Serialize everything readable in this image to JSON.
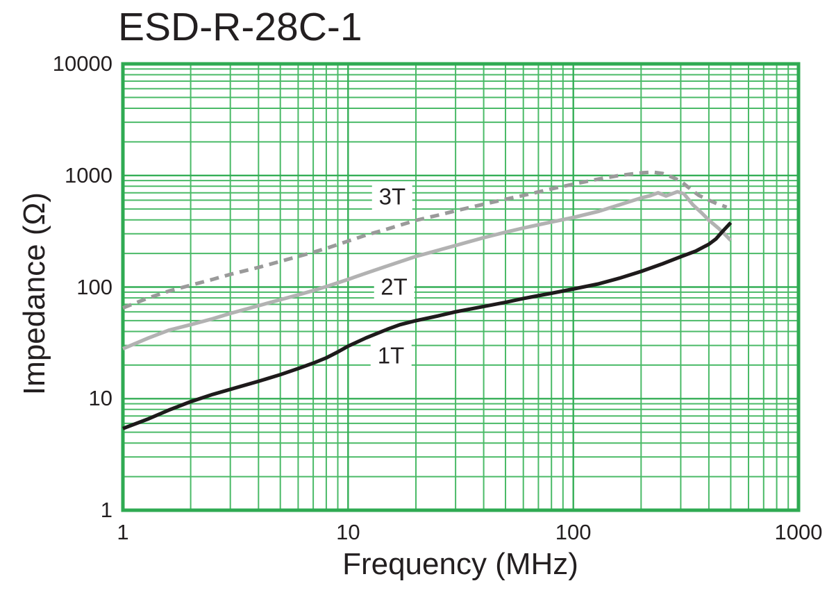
{
  "chart_data": {
    "type": "line",
    "title": "ESD-R-28C-1",
    "xlabel": "Frequency (MHz)",
    "ylabel": "Impedance (Ω)",
    "x_scale": "log",
    "y_scale": "log",
    "xlim": [
      1,
      1000
    ],
    "ylim": [
      1,
      10000
    ],
    "x_ticks": [
      "1",
      "10",
      "100",
      "1000"
    ],
    "y_ticks": [
      "1",
      "10",
      "100",
      "1000",
      "10000"
    ],
    "grid": "full log minor grid, green, on",
    "legend_position": "inline labels on curves",
    "colors": {
      "grid_minor": "#4aba67",
      "grid_major": "#34ae56",
      "plot_border": "#2faa52",
      "text": "#231f20",
      "background": "#ffffff"
    },
    "series": [
      {
        "name": "3T",
        "style": "dashed",
        "color": "#9a9a9a",
        "label_at": {
          "f": 15.7,
          "z": 640
        },
        "points": [
          [
            1,
            65
          ],
          [
            1.3,
            80
          ],
          [
            1.6,
            92
          ],
          [
            2,
            104
          ],
          [
            2.5,
            117
          ],
          [
            3,
            130
          ],
          [
            4,
            150
          ],
          [
            5,
            170
          ],
          [
            6,
            188
          ],
          [
            7,
            205
          ],
          [
            8,
            222
          ],
          [
            10,
            258
          ],
          [
            12,
            292
          ],
          [
            15,
            332
          ],
          [
            20,
            396
          ],
          [
            25,
            440
          ],
          [
            30,
            482
          ],
          [
            40,
            552
          ],
          [
            50,
            612
          ],
          [
            60,
            662
          ],
          [
            80,
            758
          ],
          [
            100,
            835
          ],
          [
            130,
            930
          ],
          [
            160,
            1000
          ],
          [
            200,
            1055
          ],
          [
            225,
            1072
          ],
          [
            250,
            1040
          ],
          [
            280,
            950
          ],
          [
            300,
            888
          ],
          [
            330,
            760
          ],
          [
            360,
            665
          ],
          [
            400,
            600
          ],
          [
            440,
            552
          ],
          [
            480,
            520
          ]
        ]
      },
      {
        "name": "2T",
        "style": "solid",
        "color": "#b2b2b2",
        "label_at": {
          "f": 16,
          "z": 99
        },
        "points": [
          [
            1,
            28
          ],
          [
            1.3,
            35
          ],
          [
            1.6,
            41
          ],
          [
            2,
            46
          ],
          [
            2.5,
            52
          ],
          [
            3,
            58
          ],
          [
            4,
            68
          ],
          [
            5,
            77
          ],
          [
            6,
            85
          ],
          [
            7,
            93
          ],
          [
            8,
            101
          ],
          [
            10,
            117
          ],
          [
            12,
            133
          ],
          [
            15,
            155
          ],
          [
            20,
            188
          ],
          [
            25,
            213
          ],
          [
            30,
            236
          ],
          [
            40,
            277
          ],
          [
            50,
            310
          ],
          [
            60,
            338
          ],
          [
            80,
            383
          ],
          [
            100,
            420
          ],
          [
            130,
            478
          ],
          [
            160,
            545
          ],
          [
            200,
            628
          ],
          [
            220,
            660
          ],
          [
            238,
            700
          ],
          [
            258,
            655
          ],
          [
            290,
            715
          ],
          [
            310,
            685
          ],
          [
            340,
            545
          ],
          [
            370,
            465
          ],
          [
            400,
            398
          ],
          [
            440,
            338
          ],
          [
            470,
            298
          ],
          [
            500,
            262
          ]
        ]
      },
      {
        "name": "1T",
        "style": "solid",
        "color": "#1e1a1b",
        "label_at": {
          "f": 15.5,
          "z": 24
        },
        "points": [
          [
            1,
            5.4
          ],
          [
            1.3,
            6.6
          ],
          [
            1.6,
            7.9
          ],
          [
            2,
            9.4
          ],
          [
            2.5,
            10.9
          ],
          [
            3,
            12.1
          ],
          [
            4,
            14.3
          ],
          [
            5,
            16.4
          ],
          [
            6,
            18.6
          ],
          [
            7,
            20.8
          ],
          [
            8,
            23.2
          ],
          [
            9,
            26.2
          ],
          [
            10,
            29.5
          ],
          [
            12,
            35
          ],
          [
            15,
            42
          ],
          [
            17,
            46
          ],
          [
            20,
            50
          ],
          [
            25,
            55
          ],
          [
            30,
            60
          ],
          [
            40,
            67
          ],
          [
            50,
            73
          ],
          [
            60,
            79
          ],
          [
            80,
            88
          ],
          [
            100,
            96
          ],
          [
            130,
            107
          ],
          [
            160,
            120
          ],
          [
            200,
            138
          ],
          [
            250,
            162
          ],
          [
            300,
            187
          ],
          [
            350,
            210
          ],
          [
            400,
            242
          ],
          [
            430,
            270
          ],
          [
            460,
            315
          ],
          [
            480,
            345
          ],
          [
            500,
            378
          ]
        ]
      }
    ]
  }
}
